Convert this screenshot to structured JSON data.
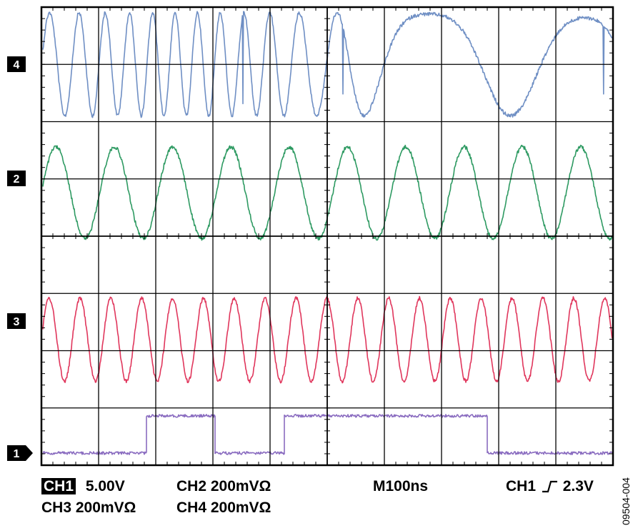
{
  "chart_data": {
    "type": "line",
    "title": "",
    "xlabel": "",
    "ylabel": "",
    "grid": true,
    "divisions": {
      "x": 10,
      "y": 8
    },
    "time_unit": "ns",
    "x_range": [
      0,
      1000
    ],
    "series": [
      {
        "channel": "4",
        "color": "#6f8fc4",
        "shape": "sine-glitchy",
        "trace_span_div": [
          -0.9,
          0.9
        ],
        "approx_period_ns": 58
      },
      {
        "channel": "2",
        "color": "#2e9a62",
        "shape": "sine",
        "trace_span_div": [
          -1.05,
          0.55
        ],
        "approx_period_ns": 102
      },
      {
        "channel": "3",
        "color": "#e0365c",
        "shape": "sine",
        "trace_span_div": [
          -1.05,
          0.4
        ],
        "approx_period_ns": 54
      },
      {
        "channel": "1",
        "color": "#8a6cc0",
        "shape": "square",
        "levels_div": [
          0.65,
          -0.0
        ],
        "transitions_ns": [
          183,
          303,
          425,
          780
        ],
        "initial_level": "low"
      }
    ]
  },
  "channel_markers": [
    {
      "label": "4"
    },
    {
      "label": "2"
    },
    {
      "label": "3"
    },
    {
      "label": "1"
    }
  ],
  "readout": {
    "ch1_label": "CH1",
    "ch1_scale": "5.00V",
    "ch2": "CH2  200mVΩ",
    "ch3": "CH3  200mVΩ",
    "ch4": "CH4  200mVΩ",
    "timebase": "M100ns",
    "trigger_source": "CH1",
    "trigger_level": "2.3V"
  },
  "figure_code": "09504-004",
  "colors": {
    "grid": "#000000",
    "background": "#ffffff"
  }
}
